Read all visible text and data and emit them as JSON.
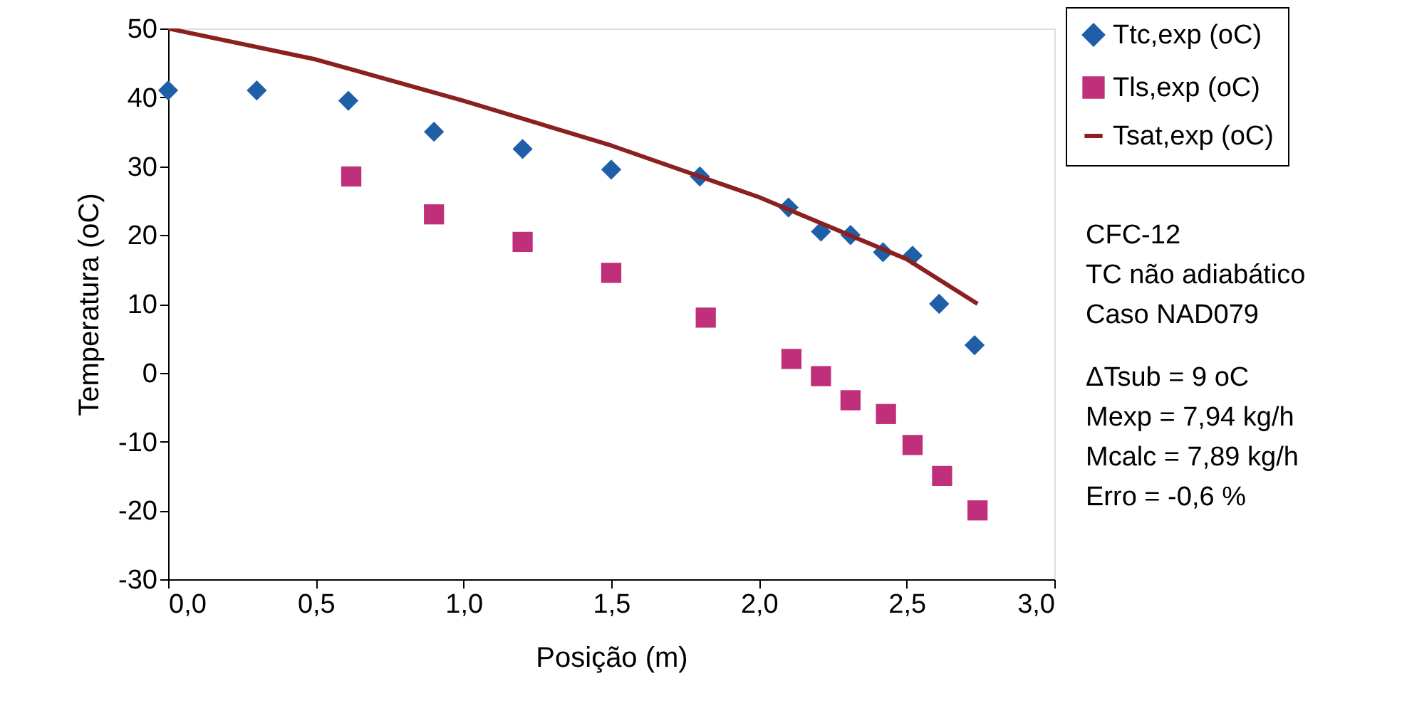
{
  "chart_data": {
    "type": "scatter",
    "xlabel": "Posição (m)",
    "ylabel": "Temperatura (oC)",
    "xlim": [
      0,
      3
    ],
    "ylim": [
      -30,
      50
    ],
    "xticks": [
      {
        "value": 0,
        "label": "0,0"
      },
      {
        "value": 0.5,
        "label": "0,5"
      },
      {
        "value": 1,
        "label": "1,0"
      },
      {
        "value": 1.5,
        "label": "1,5"
      },
      {
        "value": 2,
        "label": "2,0"
      },
      {
        "value": 2.5,
        "label": "2,5"
      },
      {
        "value": 3,
        "label": "3,0"
      }
    ],
    "yticks": [
      -30,
      -20,
      -10,
      0,
      10,
      20,
      30,
      40,
      50
    ],
    "grid": false,
    "legend": "top right",
    "series": [
      {
        "name": "Ttc,exp (oC)",
        "marker": "diamond",
        "color": "#1f5fa8",
        "x": [
          0,
          0.3,
          0.61,
          0.9,
          1.2,
          1.5,
          1.8,
          2.1,
          2.21,
          2.31,
          2.42,
          2.52,
          2.61,
          2.73
        ],
        "values": [
          41,
          41,
          39.5,
          35,
          32.5,
          29.5,
          28.5,
          24,
          20.5,
          20,
          17.5,
          17,
          10,
          4
        ]
      },
      {
        "name": "Tls,exp (oC)",
        "marker": "square",
        "color": "#c0307a",
        "x": [
          0.62,
          0.9,
          1.2,
          1.5,
          1.82,
          2.11,
          2.21,
          2.31,
          2.43,
          2.52,
          2.62,
          2.74
        ],
        "values": [
          28.5,
          23,
          19,
          14.5,
          8,
          2,
          -0.5,
          -4,
          -6,
          -10.5,
          -15,
          -20
        ]
      },
      {
        "name": "Tsat,exp (oC)",
        "type": "line",
        "marker": "none",
        "line_style": "solid",
        "color": "#8b2020",
        "x": [
          0,
          0.5,
          1.0,
          1.5,
          2.0,
          2.5,
          2.74
        ],
        "values": [
          50,
          45.5,
          39.5,
          33,
          25.5,
          16.5,
          10
        ]
      }
    ],
    "annotations": [
      "CFC-12",
      "TC não adiabático",
      "Caso NAD079",
      "ΔTsub = 9 oC",
      "Mexp = 7,94 kg/h",
      "Mcalc = 7,89 kg/h",
      "Erro = -0,6 %"
    ]
  }
}
